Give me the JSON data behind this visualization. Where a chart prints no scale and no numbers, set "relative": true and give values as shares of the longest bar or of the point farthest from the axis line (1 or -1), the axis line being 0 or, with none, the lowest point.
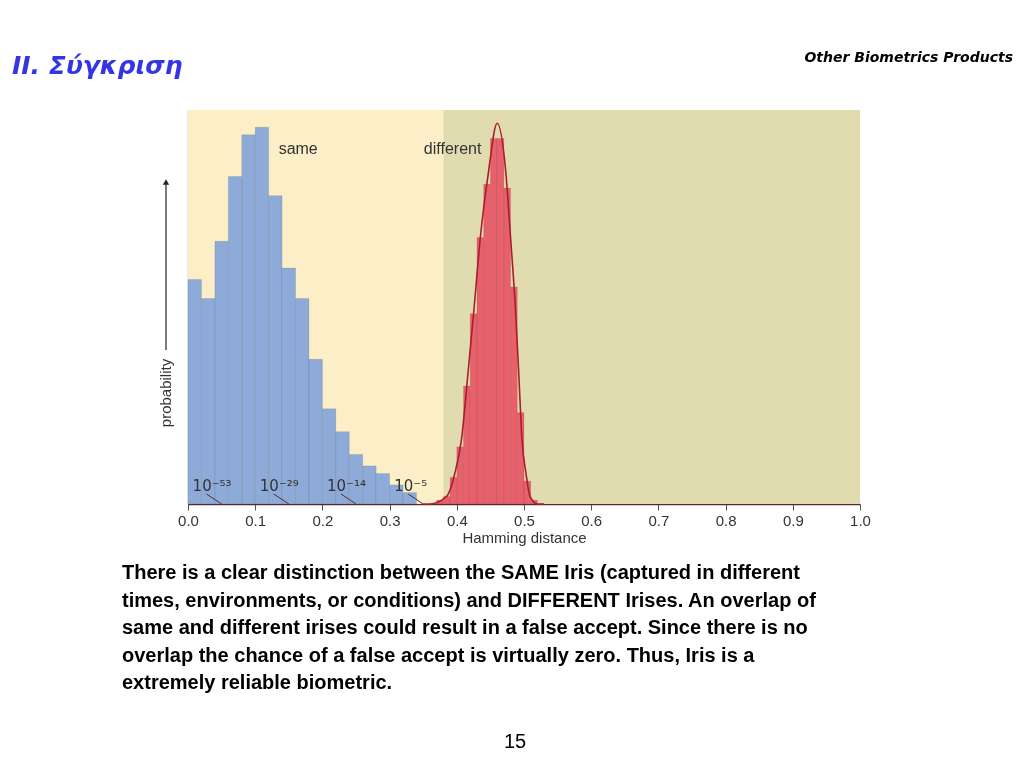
{
  "chart_data": {
    "type": "histogram",
    "title": "II. Σύγκριση",
    "subtitle": "Other Biometrics Products",
    "xlabel": "Hamming distance",
    "ylabel": "probability",
    "relative": true,
    "xlim": [
      0,
      1
    ],
    "xticks": [
      {
        "value": 0,
        "label": "0.0"
      },
      0.1,
      0.2,
      0.3,
      0.4,
      0.5,
      0.6,
      0.7,
      0.8,
      0.9,
      {
        "value": 1,
        "label": "1.0"
      }
    ],
    "series": [
      {
        "name": "same",
        "color": "#8eaad8",
        "bins": [
          0,
          0.02,
          0.04,
          0.06,
          0.08,
          0.1,
          0.12,
          0.14,
          0.16,
          0.18,
          0.2,
          0.22,
          0.24,
          0.26,
          0.28,
          0.3,
          0.32,
          0.34
        ],
        "values": [
          0.59,
          0.54,
          0.69,
          0.86,
          0.97,
          0.99,
          0.81,
          0.62,
          0.54,
          0.38,
          0.25,
          0.19,
          0.13,
          0.1,
          0.08,
          0.05,
          0.03
        ]
      },
      {
        "name": "different",
        "color": "#e8606c",
        "bins": [
          0.37,
          0.38,
          0.39,
          0.4,
          0.41,
          0.42,
          0.43,
          0.44,
          0.45,
          0.46,
          0.47,
          0.48,
          0.49,
          0.5,
          0.51,
          0.52
        ],
        "values": [
          0.01,
          0.02,
          0.07,
          0.15,
          0.31,
          0.5,
          0.7,
          0.84,
          0.96,
          0.96,
          0.83,
          0.57,
          0.24,
          0.06,
          0.01
        ]
      },
      {
        "type": "line",
        "color": "#a81e2c",
        "x": [
          0.35,
          0.36,
          0.385,
          0.397,
          0.407,
          0.417,
          0.426,
          0.435,
          0.447,
          0.46,
          0.473,
          0.48,
          0.487,
          0.492,
          0.497,
          0.503,
          0.509,
          0.52,
          0.53
        ],
        "values": [
          0,
          0,
          0.02,
          0.08,
          0.17,
          0.35,
          0.52,
          0.7,
          0.87,
          1,
          0.87,
          0.7,
          0.52,
          0.35,
          0.17,
          0.08,
          0.02,
          0,
          0
        ]
      }
    ],
    "bands": [
      {
        "axis": "x",
        "from": 0,
        "to": 0.38,
        "color": "#fcefc8"
      },
      {
        "axis": "x",
        "from": 0.38,
        "to": 1,
        "color": "#e1dcb0"
      }
    ],
    "annotations": [
      {
        "text": "10⁻⁵³",
        "x": 0.05,
        "y": 0
      },
      {
        "text": "10⁻²⁹",
        "x": 0.15,
        "y": 0
      },
      {
        "text": "10⁻¹⁴",
        "x": 0.25,
        "y": 0
      },
      {
        "text": "10⁻⁵",
        "x": 0.35,
        "y": 0
      },
      "There is a clear distinction between the SAME Iris (captured in different\ntimes, environments, or conditions) and DIFFERENT Irises. An overlap of\nsame and different irises could result in a false accept. Since there is no\noverlap the chance of a false accept is virtually zero. Thus, Iris is a\nextremely reliable biometric.",
      "15"
    ]
  }
}
